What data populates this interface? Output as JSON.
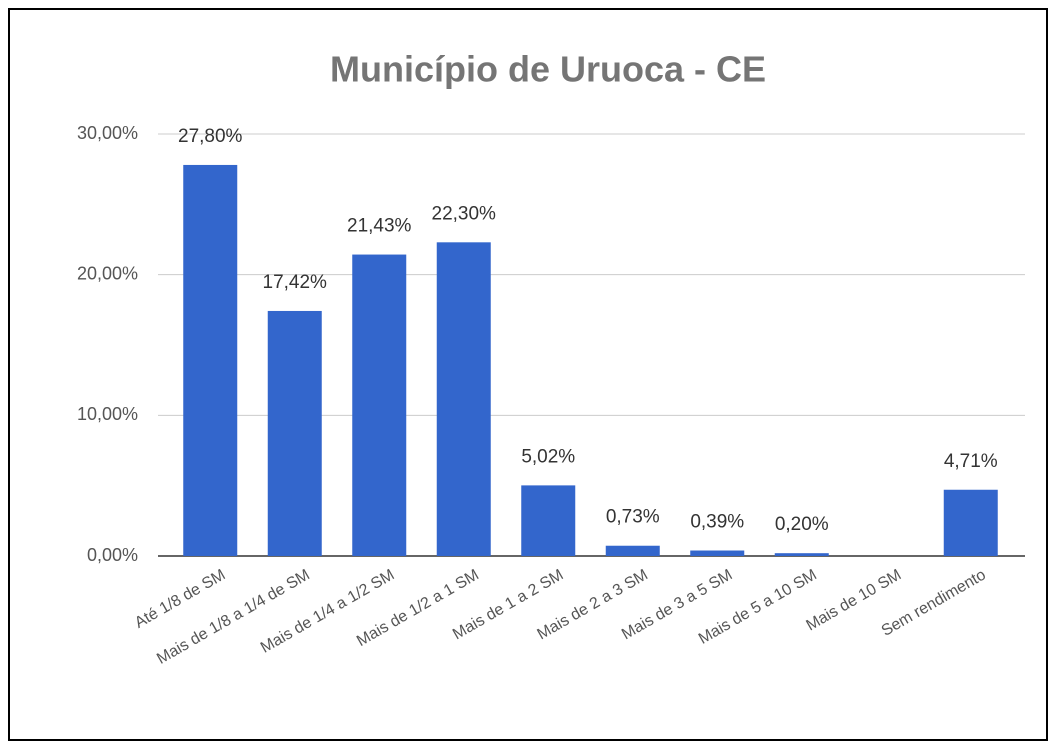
{
  "chart_data": {
    "type": "bar",
    "title": "Município de Uruoca - CE",
    "categories": [
      "Até 1/8 de SM",
      "Mais de 1/8 a 1/4 de SM",
      "Mais de 1/4 a 1/2 SM",
      "Mais de 1/2 a 1 SM",
      "Mais de 1 a 2 SM",
      "Mais de 2 a 3 SM",
      "Mais de 3 a 5 SM",
      "Mais de 5 a 10 SM",
      "Mais de 10 SM",
      "Sem rendimento"
    ],
    "values": [
      27.8,
      17.42,
      21.43,
      22.3,
      5.02,
      0.73,
      0.39,
      0.2,
      0,
      4.71
    ],
    "value_labels": [
      "27,80%",
      "17,42%",
      "21,43%",
      "22,30%",
      "5,02%",
      "0,73%",
      "0,39%",
      "0,20%",
      null,
      "4,71%"
    ],
    "color": "#3366cc",
    "ylim": [
      0,
      30
    ],
    "yticks": [
      {
        "value": 0,
        "label": "0,00%"
      },
      {
        "value": 10,
        "label": "10,00%"
      },
      {
        "value": 20,
        "label": "20,00%"
      },
      {
        "value": 30,
        "label": "30,00%"
      }
    ],
    "grid": true
  }
}
